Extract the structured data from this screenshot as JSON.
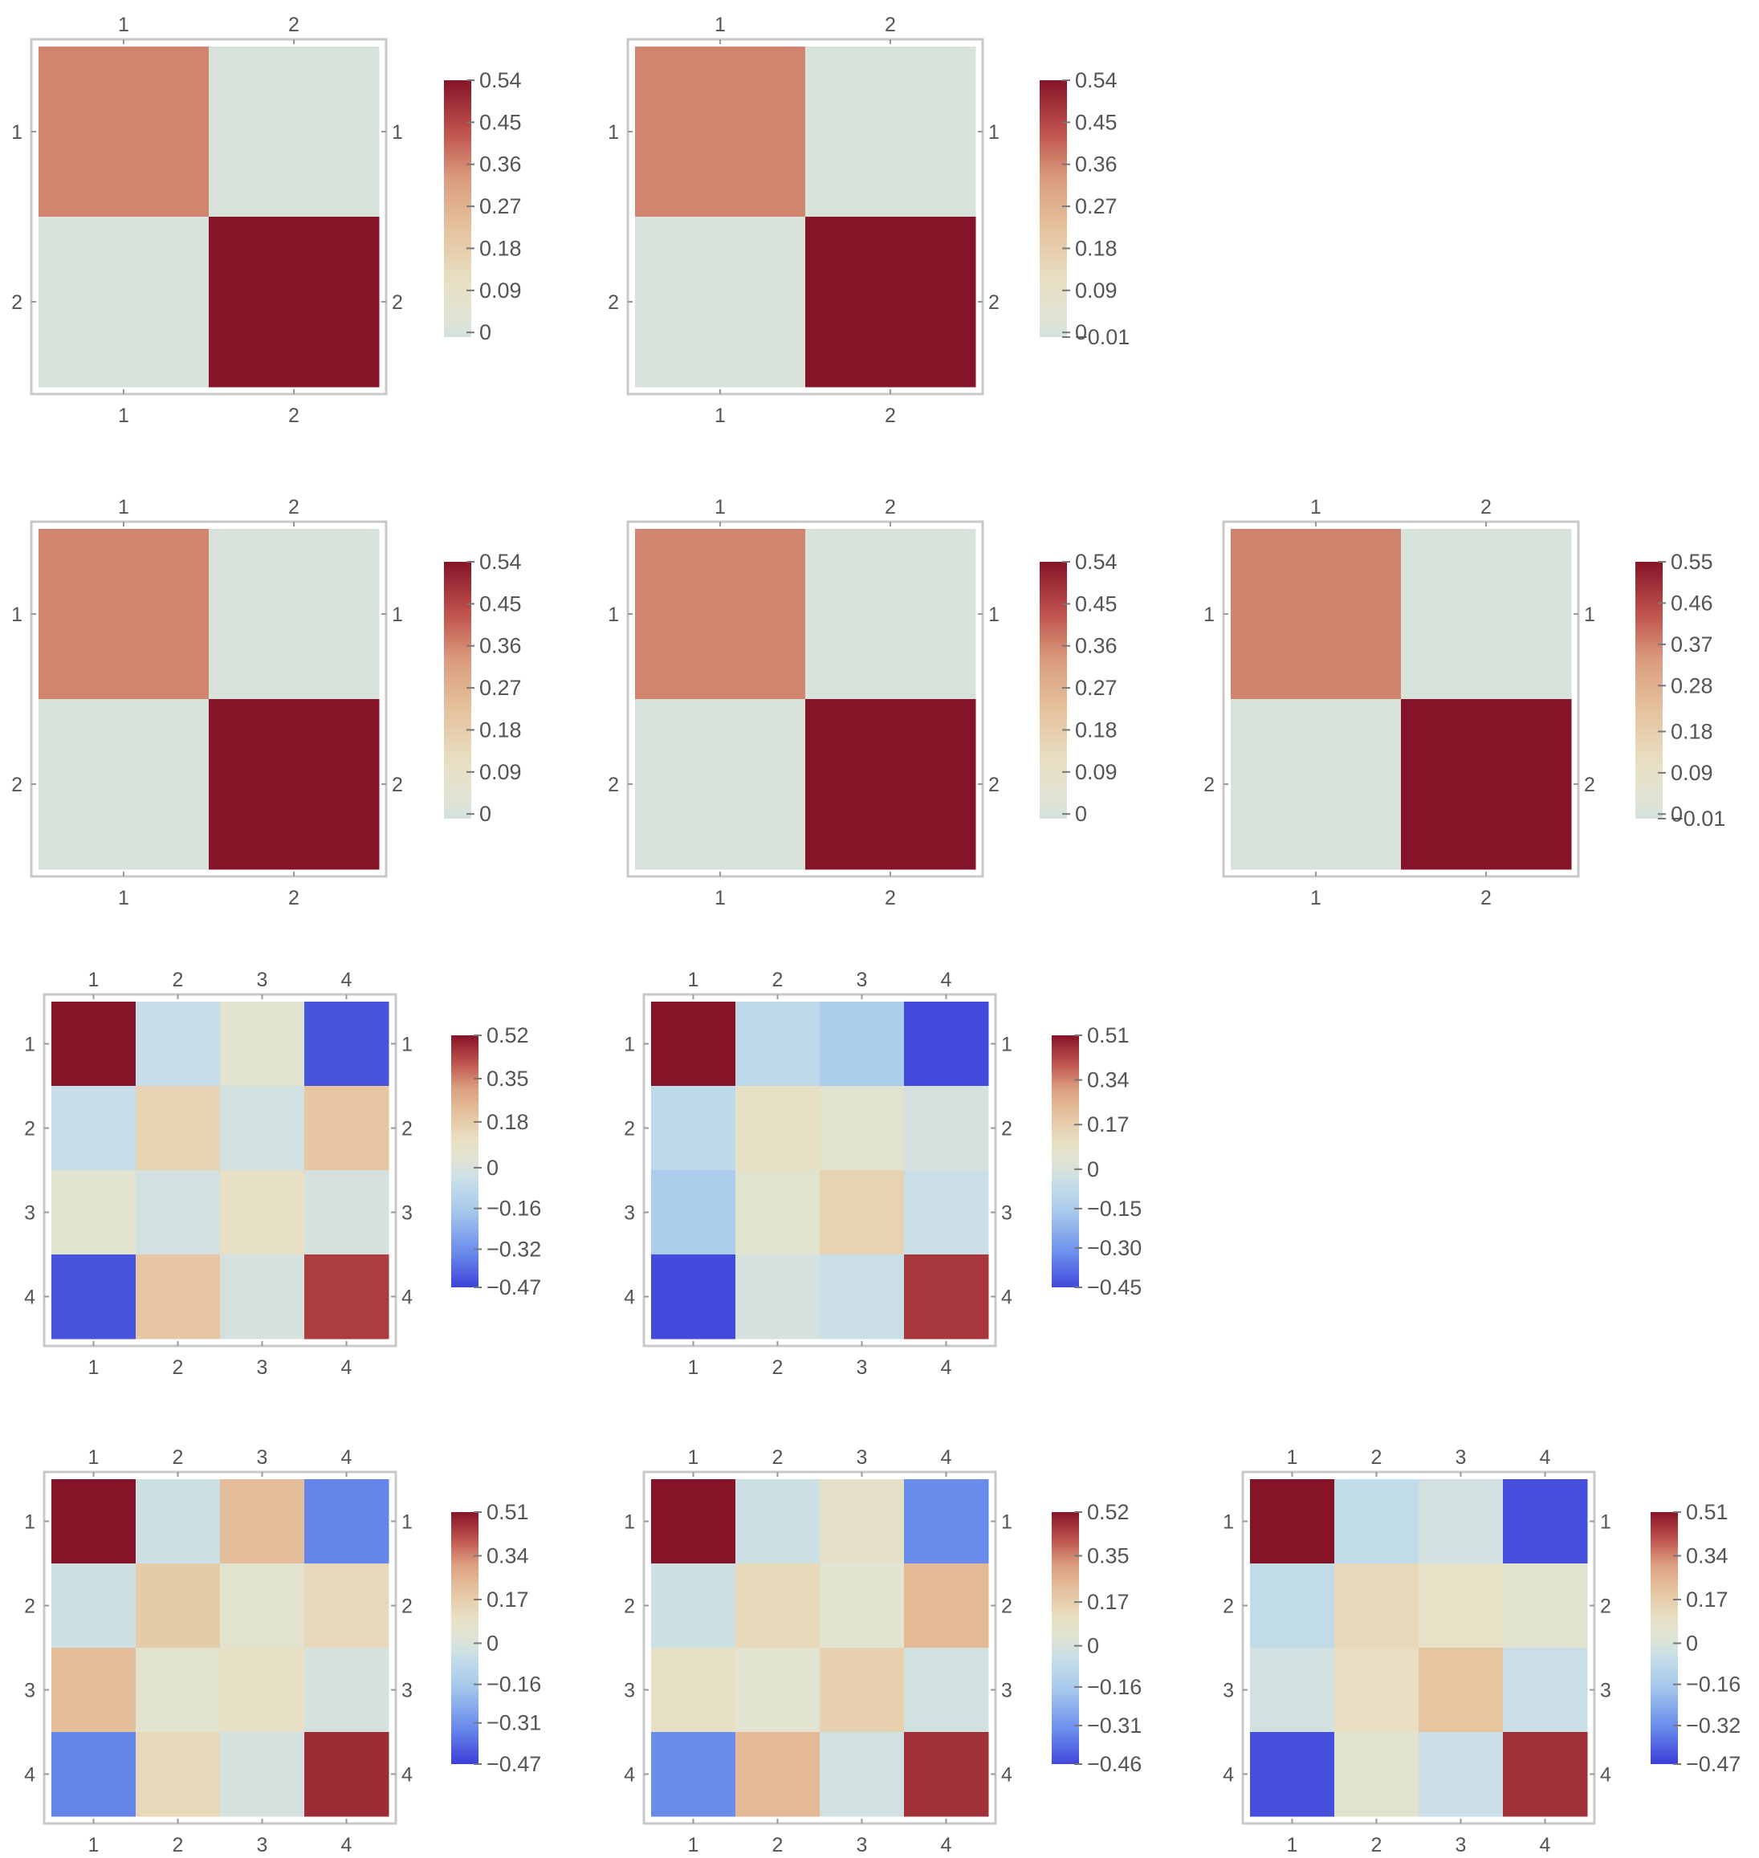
{
  "chart_data": [
    {
      "type": "heatmap",
      "title": "",
      "rows": [
        "1",
        "2"
      ],
      "cols": [
        "1",
        "2"
      ],
      "values": [
        [
          0.36,
          0.0
        ],
        [
          0.0,
          0.54
        ]
      ],
      "colorbar": {
        "min": -0.01,
        "max": 0.54,
        "ticks": [
          "0.54",
          "0.45",
          "0.36",
          "0.27",
          "0.18",
          "0.09",
          "0"
        ]
      }
    },
    {
      "type": "heatmap",
      "title": "",
      "rows": [
        "1",
        "2"
      ],
      "cols": [
        "1",
        "2"
      ],
      "values": [
        [
          0.36,
          0.0
        ],
        [
          0.0,
          0.54
        ]
      ],
      "colorbar": {
        "min": -0.01,
        "max": 0.54,
        "ticks": [
          "0.54",
          "0.45",
          "0.36",
          "0.27",
          "0.18",
          "0.09",
          "0",
          "-0.01"
        ]
      }
    },
    {
      "type": "heatmap",
      "title": "",
      "rows": [
        "1",
        "2"
      ],
      "cols": [
        "1",
        "2"
      ],
      "values": [
        [
          0.36,
          0.0
        ],
        [
          0.0,
          0.54
        ]
      ],
      "colorbar": {
        "min": -0.01,
        "max": 0.54,
        "ticks": [
          "0.54",
          "0.45",
          "0.36",
          "0.27",
          "0.18",
          "0.09",
          "0"
        ]
      }
    },
    {
      "type": "heatmap",
      "title": "",
      "rows": [
        "1",
        "2"
      ],
      "cols": [
        "1",
        "2"
      ],
      "values": [
        [
          0.36,
          0.0
        ],
        [
          0.0,
          0.54
        ]
      ],
      "colorbar": {
        "min": -0.01,
        "max": 0.54,
        "ticks": [
          "0.54",
          "0.45",
          "0.36",
          "0.27",
          "0.18",
          "0.09",
          "0"
        ]
      }
    },
    {
      "type": "heatmap",
      "title": "",
      "rows": [
        "1",
        "2"
      ],
      "cols": [
        "1",
        "2"
      ],
      "values": [
        [
          0.37,
          0.0
        ],
        [
          0.0,
          0.55
        ]
      ],
      "colorbar": {
        "min": -0.01,
        "max": 0.55,
        "ticks": [
          "0.55",
          "0.46",
          "0.37",
          "0.28",
          "0.18",
          "0.09",
          "0",
          "-0.01"
        ]
      }
    },
    {
      "type": "heatmap",
      "title": "",
      "rows": [
        "1",
        "2",
        "3",
        "4"
      ],
      "cols": [
        "1",
        "2",
        "3",
        "4"
      ],
      "values": [
        [
          0.52,
          -0.05,
          0.05,
          -0.44
        ],
        [
          -0.05,
          0.15,
          -0.02,
          0.2
        ],
        [
          0.05,
          -0.02,
          0.1,
          -0.01
        ],
        [
          -0.44,
          0.2,
          -0.01,
          0.45
        ]
      ],
      "colorbar": {
        "min": -0.47,
        "max": 0.52,
        "ticks": [
          "0.52",
          "0.35",
          "0.18",
          "0",
          "-0.16",
          "-0.32",
          "-0.47"
        ]
      }
    },
    {
      "type": "heatmap",
      "title": "",
      "rows": [
        "1",
        "2",
        "3",
        "4"
      ],
      "cols": [
        "1",
        "2",
        "3",
        "4"
      ],
      "values": [
        [
          0.51,
          -0.08,
          -0.15,
          -0.45
        ],
        [
          -0.08,
          0.1,
          0.05,
          -0.01
        ],
        [
          -0.15,
          0.05,
          0.15,
          -0.04
        ],
        [
          -0.45,
          -0.01,
          -0.04,
          0.45
        ]
      ],
      "colorbar": {
        "min": -0.45,
        "max": 0.51,
        "ticks": [
          "0.51",
          "0.34",
          "0.17",
          "0",
          "-0.15",
          "-0.30",
          "-0.45"
        ]
      }
    },
    {
      "type": "heatmap",
      "title": "",
      "rows": [
        "1",
        "2",
        "3",
        "4"
      ],
      "cols": [
        "1",
        "2",
        "3",
        "4"
      ],
      "values": [
        [
          0.51,
          -0.03,
          0.22,
          -0.34
        ],
        [
          -0.03,
          0.18,
          0.05,
          0.13
        ],
        [
          0.22,
          0.05,
          0.1,
          -0.01
        ],
        [
          -0.34,
          0.13,
          -0.01,
          0.47
        ]
      ],
      "colorbar": {
        "min": -0.47,
        "max": 0.51,
        "ticks": [
          "0.51",
          "0.34",
          "0.17",
          "0",
          "-0.16",
          "-0.31",
          "-0.47"
        ]
      }
    },
    {
      "type": "heatmap",
      "title": "",
      "rows": [
        "1",
        "2",
        "3",
        "4"
      ],
      "cols": [
        "1",
        "2",
        "3",
        "4"
      ],
      "values": [
        [
          0.52,
          -0.03,
          0.08,
          -0.33
        ],
        [
          -0.03,
          0.13,
          0.05,
          0.24
        ],
        [
          0.1,
          0.05,
          0.16,
          -0.02
        ],
        [
          -0.33,
          0.24,
          -0.02,
          0.47
        ]
      ],
      "colorbar": {
        "min": -0.46,
        "max": 0.52,
        "ticks": [
          "0.52",
          "0.35",
          "0.17",
          "0",
          "-0.16",
          "-0.31",
          "-0.46"
        ]
      }
    },
    {
      "type": "heatmap",
      "title": "",
      "rows": [
        "1",
        "2",
        "3",
        "4"
      ],
      "cols": [
        "1",
        "2",
        "3",
        "4"
      ],
      "values": [
        [
          0.51,
          -0.07,
          -0.02,
          -0.44
        ],
        [
          -0.07,
          0.13,
          0.09,
          0.05
        ],
        [
          -0.02,
          0.11,
          0.2,
          -0.04
        ],
        [
          -0.44,
          0.05,
          -0.04,
          0.46
        ]
      ],
      "colorbar": {
        "min": -0.47,
        "max": 0.51,
        "ticks": [
          "0.51",
          "0.34",
          "0.17",
          "0",
          "-0.16",
          "-0.32",
          "-0.47"
        ]
      }
    }
  ]
}
